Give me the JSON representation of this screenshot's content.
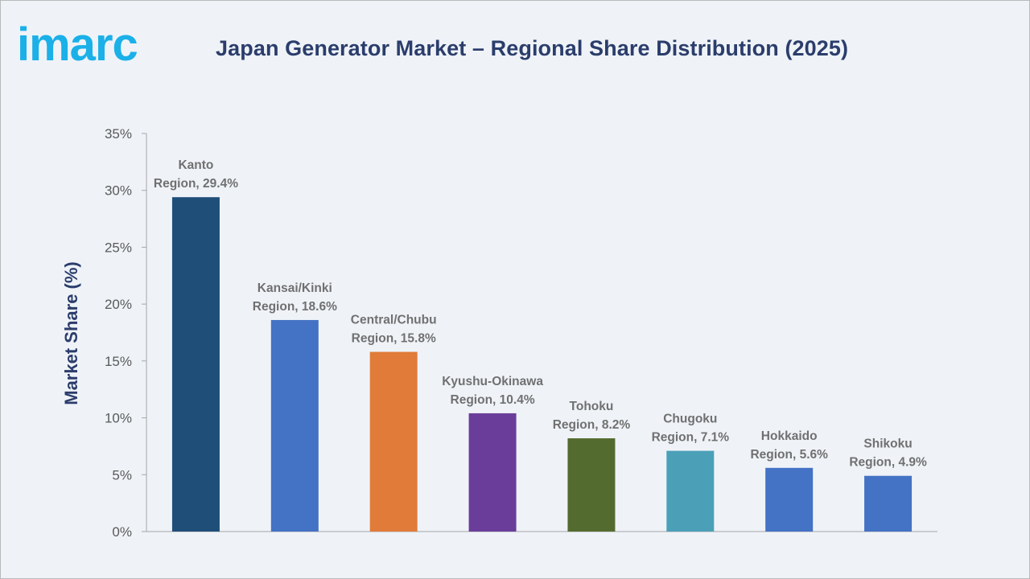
{
  "brand": {
    "logo_text": "imarc",
    "color": "#1bb0e8"
  },
  "chart_data": {
    "type": "bar",
    "title": "Japan Generator Market – Regional Share Distribution (2025)",
    "xlabel": "",
    "ylabel": "Market Share (%)",
    "ylim": [
      0,
      35
    ],
    "yticks": [
      0,
      5,
      10,
      15,
      20,
      25,
      30,
      35
    ],
    "ytick_labels": [
      "0%",
      "5%",
      "10%",
      "15%",
      "20%",
      "25%",
      "30%",
      "35%"
    ],
    "grid": false,
    "categories": [
      "Kanto Region",
      "Kansai/Kinki Region",
      "Central/Chubu Region",
      "Kyushu-Okinawa Region",
      "Tohoku Region",
      "Chugoku Region",
      "Hokkaido Region",
      "Shikoku Region"
    ],
    "values": [
      29.4,
      18.6,
      15.8,
      10.4,
      8.2,
      7.1,
      5.6,
      4.9
    ],
    "data_labels": [
      [
        "Kanto",
        "Region, 29.4%"
      ],
      [
        "Kansai/Kinki",
        "Region, 18.6%"
      ],
      [
        "Central/Chubu",
        "Region, 15.8%"
      ],
      [
        "Kyushu-Okinawa",
        "Region, 10.4%"
      ],
      [
        "Tohoku",
        "Region, 8.2%"
      ],
      [
        "Chugoku",
        "Region, 7.1%"
      ],
      [
        "Hokkaido",
        "Region, 5.6%"
      ],
      [
        "Shikoku",
        "Region, 4.9%"
      ]
    ],
    "colors": [
      "#1f4e79",
      "#4472c4",
      "#e07b39",
      "#6a3d9a",
      "#546b2f",
      "#4ba0b8",
      "#4472c4",
      "#4472c4"
    ]
  }
}
